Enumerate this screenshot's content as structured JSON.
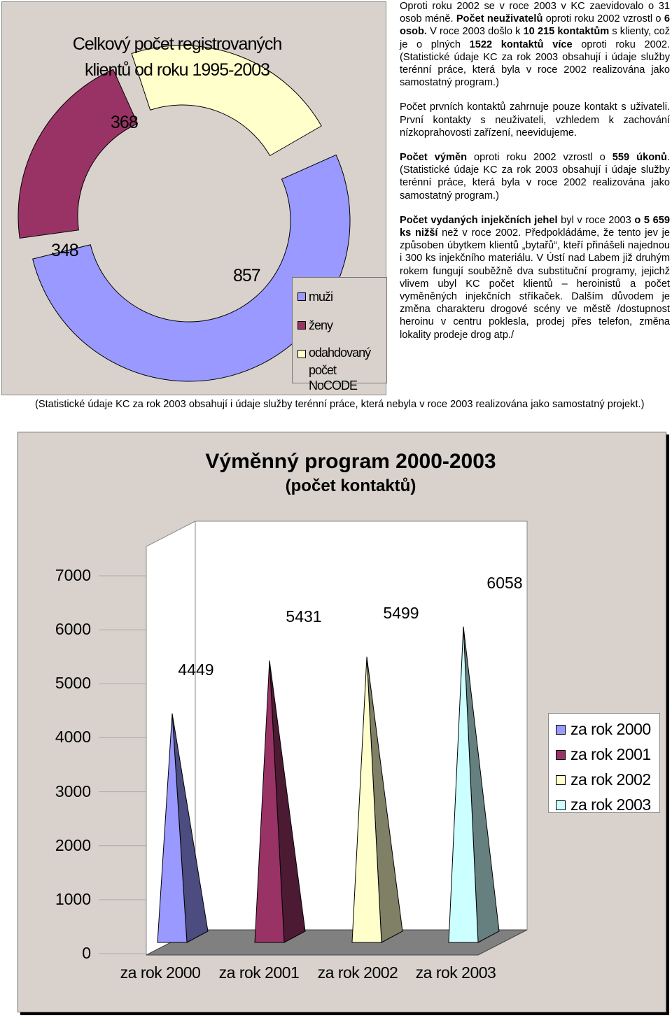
{
  "donut_chart": {
    "title_line1": "Celkový počet registrovaných",
    "title_line2": "klientů od roku 1995-2003",
    "labels": {
      "muzi": "857",
      "zeny": "348",
      "nocode": "368"
    },
    "legend": [
      {
        "label": "muži",
        "color": "#9999ff"
      },
      {
        "label": "ženy",
        "color": "#993366"
      },
      {
        "label_line1": "odahdovaný",
        "label_line2": "počet NoCODE",
        "color": "#ffffcc"
      }
    ]
  },
  "right_column": {
    "p1_a": "Oproti roku 2002 se v roce 2003 v KC zaevidovalo o 31 osob méně. ",
    "p1_b_bold": "Počet neuživatelů",
    "p1_c": " oproti roku 2002 vzrostl o ",
    "p1_d_bold": "6 osob.",
    "p1_e": " V roce 2003 došlo k ",
    "p1_f_bold": "10 215 kontaktům",
    "p1_g": " s klienty, což je o plných ",
    "p1_h_bold": "1522 kontaktů více",
    "p1_i": " oproti roku 2002. (Statistické údaje KC za rok 2003 obsahují i údaje služby terénní práce, která byla v roce 2002 realizována jako samostatný program.)",
    "p2": "Počet prvních kontaktů zahrnuje pouze kontakt s uživateli. První kontakty s neuživateli, vzhledem k zachování nízkoprahovosti zařízení, neevidujeme.",
    "p3_a_bold": "Počet výměn",
    "p3_b": " oproti roku 2002 vzrostl o ",
    "p3_c_bold": "559 úkonů",
    "p3_d": ". (Statistické údaje KC za rok 2003 obsahují i údaje služby terénní práce, která byla v roce 2002 realizována jako samostatný program.)",
    "p4_a_bold": "Počet vydaných injekčních jehel",
    "p4_b": " byl v roce 2003 ",
    "p4_c_bold": "o 5 659 ks nižší",
    "p4_d": " než v roce 2002. Předpokládáme, že tento jev je způsoben úbytkem klientů „bytařů“, kteří přinášeli najednou i 300 ks injekčního materiálu. V Ústí nad Labem již druhým rokem fungují souběžně dva substituční programy, jejichž vlivem ubyl KC počet klientů – heroinistů a počet vyměněných injekčních stříkaček. Dalším důvodem je změna charakteru drogové scény ve městě /dostupnost heroinu v centru poklesla, prodej přes telefon, změna lokality prodeje drog atp./"
  },
  "footnote": "(Statistické údaje KC za rok 2003 obsahují i údaje služby terénní práce, která nebyla v roce 2003 realizována jako samostatný projekt.)",
  "chart_data": [
    {
      "type": "pie",
      "title": "Celkový počet registrovaných klientů od roku 1995-2003",
      "categories": [
        "muži",
        "ženy",
        "odahdovaný počet NoCODE"
      ],
      "values": [
        857,
        348,
        368
      ]
    },
    {
      "type": "bar",
      "title": "Výměnný program 2000-2003",
      "subtitle": "(počet kontaktů)",
      "categories": [
        "za rok 2000",
        "za rok 2001",
        "za rok 2002",
        "za rok 2003"
      ],
      "values": [
        4449,
        5431,
        5499,
        6058
      ],
      "ylim": [
        0,
        7000
      ],
      "yticks": [
        "0",
        "1000",
        "2000",
        "3000",
        "4000",
        "5000",
        "6000",
        "7000"
      ],
      "legend": [
        "za rok 2000",
        "za rok 2001",
        "za rok 2002",
        "za rok 2003"
      ],
      "legend_placement": "right",
      "colors": [
        {
          "front": "#9999ff",
          "side": "#4c4c80"
        },
        {
          "front": "#993366",
          "side": "#4d1a33"
        },
        {
          "front": "#ffffcc",
          "side": "#808066"
        },
        {
          "front": "#ccffff",
          "side": "#668080"
        }
      ]
    }
  ]
}
